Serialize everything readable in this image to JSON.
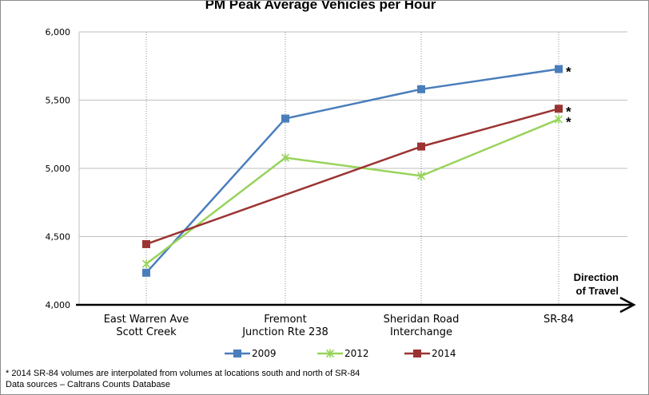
{
  "chart_data": {
    "type": "line",
    "title": "PM Peak Average Vehicles per Hour",
    "categories": [
      [
        "East Warren Ave",
        "Scott Creek"
      ],
      [
        "Fremont",
        "Junction Rte 238"
      ],
      [
        "Sheridan Road",
        "Interchange"
      ],
      [
        "SR-84"
      ]
    ],
    "ylim": [
      4000,
      6000
    ],
    "yticks": [
      "4,000",
      "4,500",
      "5,000",
      "5,500",
      "6,000"
    ],
    "ytick_values": [
      4000,
      4500,
      5000,
      5500,
      6000
    ],
    "grid": "vertical dotted lines at categories",
    "series": [
      {
        "name": "2009",
        "color": "#4a7ebb",
        "marker": "square",
        "values": [
          4235,
          5365,
          5580,
          5728
        ]
      },
      {
        "name": "2012",
        "color": "#98d35b",
        "marker": "x",
        "values": [
          4300,
          5078,
          4945,
          5360
        ]
      },
      {
        "name": "2014",
        "color": "#9b3332",
        "marker": "square",
        "values": [
          4445,
          null,
          5160,
          5437
        ]
      }
    ],
    "star_annotations": [
      "*",
      "*",
      "*"
    ],
    "axis_annotation": [
      "Direction",
      "of Travel"
    ],
    "legend_position": "bottom",
    "footnotes": [
      "* 2014 SR-84 volumes are interpolated from volumes at locations south and north of SR-84",
      "Data sources – Caltrans Counts Database"
    ]
  }
}
